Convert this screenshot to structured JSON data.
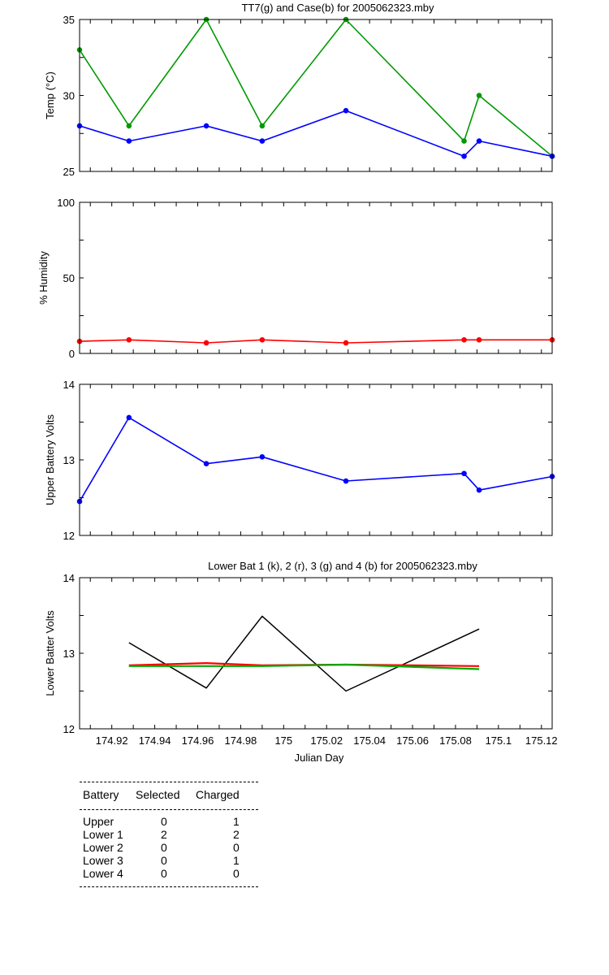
{
  "chart_data": [
    {
      "type": "line",
      "title": "TT7(g) and Case(b) for 2005062323.mby",
      "xlabel": "",
      "ylabel": "Temp  (°C)",
      "xlim": [
        174.905,
        175.125
      ],
      "ylim": [
        25,
        35
      ],
      "yticks": [
        "25",
        "30",
        "35"
      ],
      "grid": false,
      "x": [
        174.905,
        174.928,
        174.964,
        174.99,
        175.029,
        175.084,
        175.091,
        175.125
      ],
      "series": [
        {
          "color": "#009900",
          "values": [
            33,
            28,
            35,
            28,
            35,
            27,
            30,
            26
          ]
        },
        {
          "color": "#0000ff",
          "values": [
            28,
            27,
            28,
            27,
            29,
            26,
            27,
            26
          ]
        }
      ]
    },
    {
      "type": "line",
      "title": "",
      "xlabel": "",
      "ylabel": "% Humidity",
      "xlim": [
        174.905,
        175.125
      ],
      "ylim": [
        0,
        100
      ],
      "yticks": [
        "0",
        "50",
        "100"
      ],
      "grid": false,
      "x": [
        174.905,
        174.928,
        174.964,
        174.99,
        175.029,
        175.084,
        175.091,
        175.125
      ],
      "series": [
        {
          "color": "#ff0000",
          "values": [
            8,
            9,
            7,
            9,
            7,
            9,
            9,
            9
          ]
        }
      ]
    },
    {
      "type": "line",
      "title": "",
      "xlabel": "",
      "ylabel": "Upper Battery Volts",
      "xlim": [
        174.905,
        175.125
      ],
      "ylim": [
        12,
        14
      ],
      "yticks": [
        "12",
        "13",
        "14"
      ],
      "grid": false,
      "x": [
        174.905,
        174.928,
        174.964,
        174.99,
        175.029,
        175.084,
        175.091,
        175.125
      ],
      "series": [
        {
          "color": "#0000ff",
          "values": [
            12.45,
            13.56,
            12.95,
            13.04,
            12.72,
            12.82,
            12.6,
            12.78
          ]
        }
      ]
    },
    {
      "type": "line",
      "title": "Lower Bat 1 (k), 2 (r), 3 (g) and 4 (b) for 2005062323.mby",
      "xlabel": "Julian Day",
      "ylabel": "Lower Batter Volts",
      "xlim": [
        174.905,
        175.125
      ],
      "ylim": [
        12,
        14
      ],
      "yticks": [
        "12",
        "13",
        "14"
      ],
      "xticks": [
        "174.92",
        "174.94",
        "174.96",
        "174.98",
        "175",
        "175.02",
        "175.04",
        "175.06",
        "175.08",
        "175.1",
        "175.12"
      ],
      "grid": false,
      "x": [
        174.928,
        174.964,
        174.99,
        175.029,
        175.091
      ],
      "series": [
        {
          "color": "#000000",
          "values": [
            13.14,
            12.54,
            13.49,
            12.5,
            13.32
          ]
        },
        {
          "color": "#ff0000",
          "values": [
            12.84,
            12.87,
            12.84,
            12.85,
            12.83
          ]
        },
        {
          "color": "#00aa00",
          "values": [
            12.83,
            12.83,
            12.83,
            12.85,
            12.79
          ]
        }
      ]
    }
  ],
  "battery_table": {
    "headers": [
      "Battery",
      "Selected",
      "Charged"
    ],
    "rows": [
      [
        "Upper",
        "0",
        "1"
      ],
      [
        "Lower 1",
        "2",
        "2"
      ],
      [
        "Lower 2",
        "0",
        "0"
      ],
      [
        "Lower 3",
        "0",
        "1"
      ],
      [
        "Lower 4",
        "0",
        "0"
      ]
    ]
  }
}
